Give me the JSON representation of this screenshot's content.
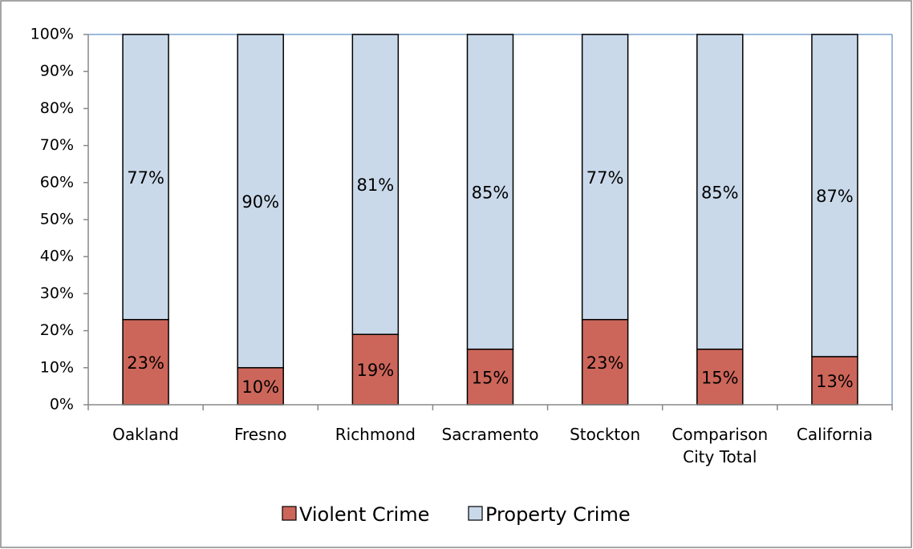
{
  "chart_data": {
    "type": "stacked_bar",
    "categories": [
      "Oakland",
      "Fresno",
      "Richmond",
      "Sacramento",
      "Stockton",
      "Comparison City Total",
      "California"
    ],
    "series": [
      {
        "name": "Violent Crime",
        "color": "#cd665a",
        "values": [
          23,
          10,
          19,
          15,
          23,
          15,
          13
        ],
        "value_labels": [
          "23%",
          "10%",
          "19%",
          "15%",
          "23%",
          "15%",
          "13%"
        ]
      },
      {
        "name": "Property Crime",
        "color": "#c9d9ea",
        "values": [
          77,
          90,
          81,
          85,
          77,
          85,
          87
        ],
        "value_labels": [
          "77%",
          "90%",
          "81%",
          "85%",
          "77%",
          "85%",
          "87%"
        ]
      }
    ],
    "ylim": [
      0,
      100
    ],
    "yticks": [
      {
        "value": 0,
        "label": "0%"
      },
      {
        "value": 10,
        "label": "10%"
      },
      {
        "value": 20,
        "label": "20%"
      },
      {
        "value": 30,
        "label": "30%"
      },
      {
        "value": 40,
        "label": "40%"
      },
      {
        "value": 50,
        "label": "50%"
      },
      {
        "value": 60,
        "label": "60%"
      },
      {
        "value": 70,
        "label": "70%"
      },
      {
        "value": 80,
        "label": "80%"
      },
      {
        "value": 90,
        "label": "90%"
      },
      {
        "value": 100,
        "label": "100%"
      }
    ],
    "legend": "bottom"
  }
}
